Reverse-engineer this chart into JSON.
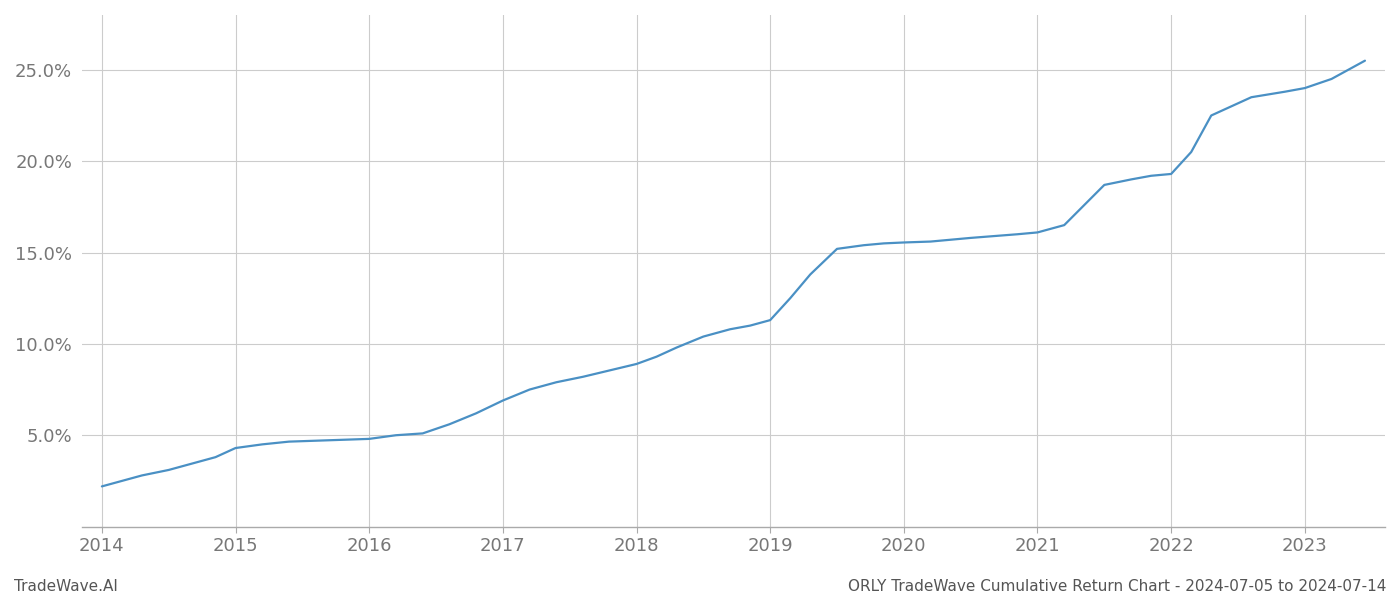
{
  "title": "",
  "footer_left": "TradeWave.AI",
  "footer_right": "ORLY TradeWave Cumulative Return Chart - 2024-07-05 to 2024-07-14",
  "line_color": "#4a90c4",
  "background_color": "#ffffff",
  "grid_color": "#cccccc",
  "x_years": [
    2014,
    2015,
    2016,
    2017,
    2018,
    2019,
    2020,
    2021,
    2022,
    2023
  ],
  "x_data": [
    2014.0,
    2014.15,
    2014.3,
    2014.5,
    2014.7,
    2014.85,
    2015.0,
    2015.2,
    2015.4,
    2015.6,
    2015.8,
    2016.0,
    2016.2,
    2016.4,
    2016.6,
    2016.8,
    2017.0,
    2017.2,
    2017.4,
    2017.6,
    2017.8,
    2018.0,
    2018.15,
    2018.3,
    2018.5,
    2018.7,
    2018.85,
    2019.0,
    2019.15,
    2019.3,
    2019.5,
    2019.7,
    2019.85,
    2020.0,
    2020.2,
    2020.5,
    2020.85,
    2021.0,
    2021.2,
    2021.5,
    2021.7,
    2021.85,
    2022.0,
    2022.15,
    2022.3,
    2022.6,
    2022.85,
    2023.0,
    2023.2,
    2023.45
  ],
  "y_data": [
    2.2,
    2.5,
    2.8,
    3.1,
    3.5,
    3.8,
    4.3,
    4.5,
    4.65,
    4.7,
    4.75,
    4.8,
    5.0,
    5.1,
    5.6,
    6.2,
    6.9,
    7.5,
    7.9,
    8.2,
    8.55,
    8.9,
    9.3,
    9.8,
    10.4,
    10.8,
    11.0,
    11.3,
    12.5,
    13.8,
    15.2,
    15.4,
    15.5,
    15.55,
    15.6,
    15.8,
    16.0,
    16.1,
    16.5,
    18.7,
    19.0,
    19.2,
    19.3,
    20.5,
    22.5,
    23.5,
    23.8,
    24.0,
    24.5,
    25.5
  ],
  "ylim": [
    0,
    28
  ],
  "xlim": [
    2013.85,
    2023.6
  ],
  "yticks": [
    5.0,
    10.0,
    15.0,
    20.0,
    25.0
  ],
  "ytick_labels": [
    "5.0%",
    "10.0%",
    "15.0%",
    "20.0%",
    "25.0%"
  ],
  "line_width": 1.6,
  "footer_fontsize": 11,
  "tick_fontsize": 13,
  "axis_color": "#888888",
  "tick_color": "#777777"
}
